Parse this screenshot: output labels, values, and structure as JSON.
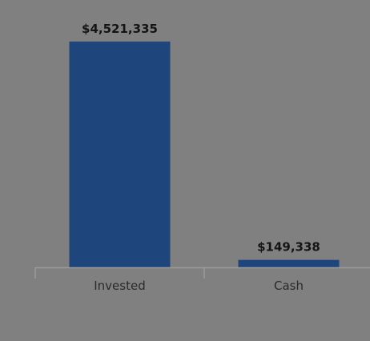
{
  "chart_data": {
    "type": "bar",
    "categories": [
      "Invested",
      "Cash"
    ],
    "values": [
      4521335,
      149338
    ],
    "value_labels": [
      "$4,521,335",
      "$149,338"
    ],
    "title": "",
    "xlabel": "",
    "ylabel": "",
    "ylim": [
      0,
      5000000
    ],
    "grid": false,
    "legend": "none"
  },
  "colors": {
    "background": "#808080",
    "bar": "#1f467c",
    "axis": "#9b9b9b"
  }
}
